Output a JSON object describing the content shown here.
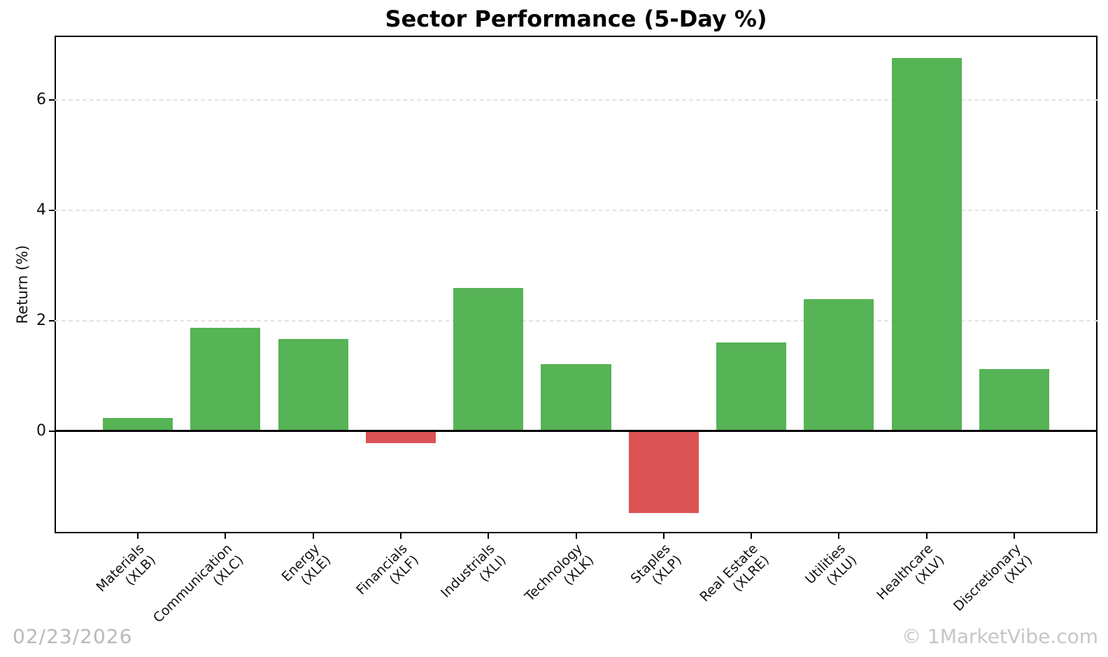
{
  "page": {
    "date_stamp": "02/23/2026",
    "watermark": "© 1MarketVibe.com"
  },
  "chart_data": {
    "type": "bar",
    "title": "Sector Performance (5-Day %)",
    "xlabel": "",
    "ylabel": "Return (%)",
    "categories": [
      {
        "name": "Materials",
        "ticker": "(XLB)"
      },
      {
        "name": "Communication",
        "ticker": "(XLC)"
      },
      {
        "name": "Energy",
        "ticker": "(XLE)"
      },
      {
        "name": "Financials",
        "ticker": "(XLF)"
      },
      {
        "name": "Industrials",
        "ticker": "(XLI)"
      },
      {
        "name": "Technology",
        "ticker": "(XLK)"
      },
      {
        "name": "Staples",
        "ticker": "(XLP)"
      },
      {
        "name": "Real Estate",
        "ticker": "(XLRE)"
      },
      {
        "name": "Utilities",
        "ticker": "(XLU)"
      },
      {
        "name": "Healthcare",
        "ticker": "(XLV)"
      },
      {
        "name": "Discretionary",
        "ticker": "(XLY)"
      }
    ],
    "values": [
      0.24,
      1.87,
      1.67,
      -0.22,
      2.6,
      1.22,
      -1.48,
      1.61,
      2.4,
      6.76,
      1.13
    ],
    "positive_color": "#56b356",
    "negative_color": "#db5355",
    "ylim": [
      -1.85,
      7.17
    ],
    "yticks": [
      0,
      2,
      4,
      6
    ],
    "xlim": [
      -0.95,
      10.95
    ],
    "bar_width": 0.8,
    "grid": "horizontal-dashed",
    "legend": "none"
  }
}
